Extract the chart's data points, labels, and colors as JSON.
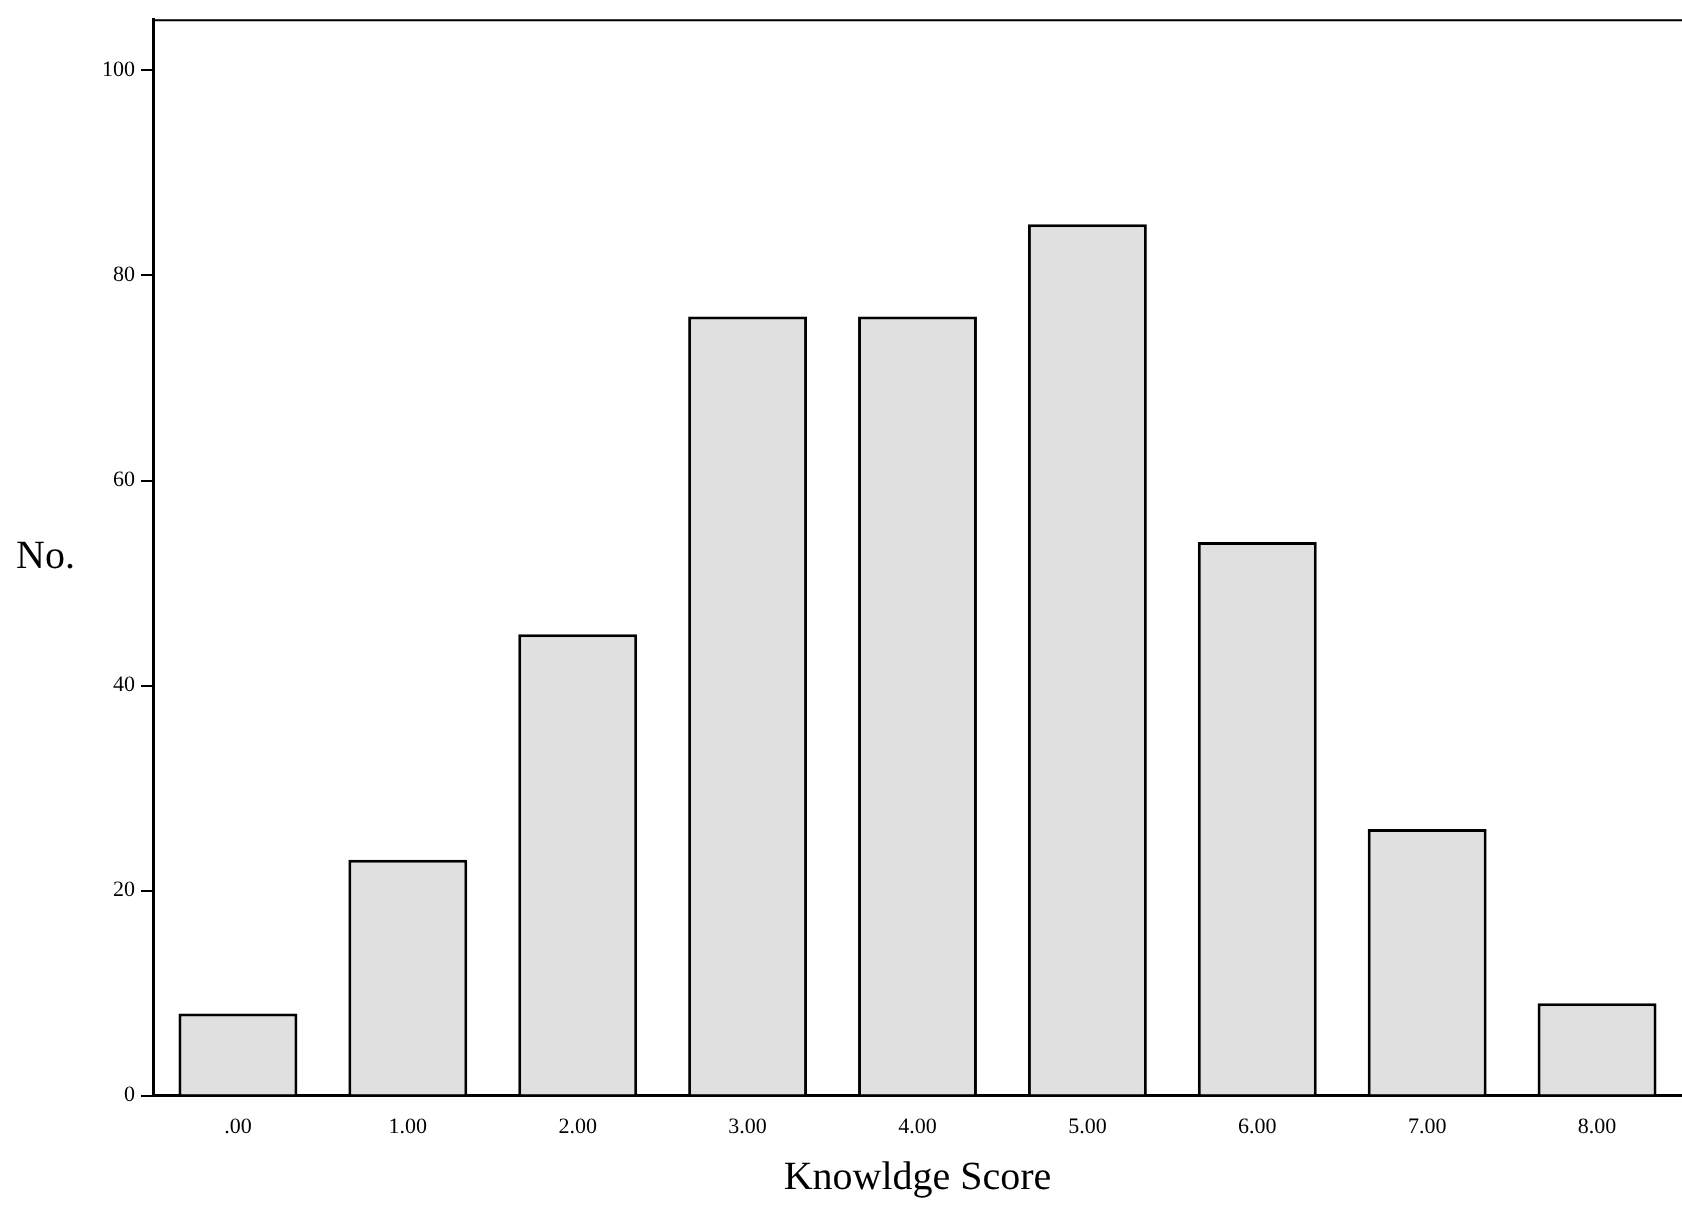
{
  "chart_data": {
    "type": "bar",
    "xlabel": "Knowldge Score",
    "ylabel": "No.",
    "categories": [
      ".00",
      "1.00",
      "2.00",
      "3.00",
      "4.00",
      "5.00",
      "6.00",
      "7.00",
      "8.00"
    ],
    "values": [
      8,
      23,
      45,
      76,
      76,
      85,
      54,
      26,
      9
    ],
    "color": "#e0e0e0",
    "ylim": [
      0,
      105
    ],
    "yticks": [
      0,
      20,
      40,
      60,
      80,
      100
    ],
    "grid": false,
    "legend": false
  }
}
